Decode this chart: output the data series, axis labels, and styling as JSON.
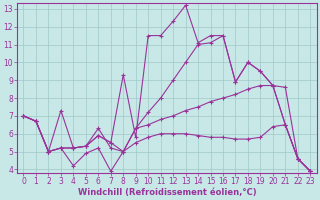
{
  "background_color": "#c8e8e8",
  "grid_color": "#a0c8c8",
  "line_color": "#993399",
  "marker": "+",
  "xlabel": "Windchill (Refroidissement éolien,°C)",
  "xlim": [
    -0.5,
    23.5
  ],
  "ylim": [
    3.8,
    13.3
  ],
  "yticks": [
    4,
    5,
    6,
    7,
    8,
    9,
    10,
    11,
    12,
    13
  ],
  "xticks": [
    0,
    1,
    2,
    3,
    4,
    5,
    6,
    7,
    8,
    9,
    10,
    11,
    12,
    13,
    14,
    15,
    16,
    17,
    18,
    19,
    20,
    21,
    22,
    23
  ],
  "series": [
    [
      7.0,
      6.7,
      5.0,
      7.3,
      5.2,
      5.3,
      6.3,
      5.2,
      5.0,
      6.3,
      6.5,
      6.8,
      7.0,
      7.3,
      7.5,
      7.8,
      8.0,
      8.2,
      8.5,
      8.7,
      8.7,
      8.6,
      4.6,
      3.9
    ],
    [
      7.0,
      6.7,
      5.0,
      5.2,
      4.2,
      4.9,
      5.2,
      3.9,
      5.0,
      6.3,
      7.2,
      8.0,
      9.0,
      10.0,
      11.0,
      11.1,
      11.5,
      8.9,
      10.0,
      9.5,
      8.7,
      6.5,
      4.6,
      3.9
    ],
    [
      7.0,
      6.7,
      5.0,
      5.2,
      5.2,
      5.3,
      5.9,
      5.5,
      9.3,
      5.8,
      11.5,
      11.5,
      12.3,
      13.2,
      11.1,
      11.5,
      11.5,
      8.9,
      10.0,
      9.5,
      8.7,
      6.5,
      4.6,
      3.9
    ],
    [
      7.0,
      6.7,
      5.0,
      5.2,
      5.2,
      5.3,
      5.9,
      5.5,
      5.0,
      5.5,
      5.8,
      6.0,
      6.0,
      6.0,
      5.9,
      5.8,
      5.8,
      5.7,
      5.7,
      5.8,
      6.4,
      6.5,
      4.6,
      3.9
    ]
  ],
  "tick_fontsize": 5.5,
  "xlabel_fontsize": 6.0,
  "xlabel_fontweight": "bold",
  "spine_color": "#993399",
  "spine_lw": 0.8,
  "line_lw": 0.8,
  "marker_size": 3.5
}
